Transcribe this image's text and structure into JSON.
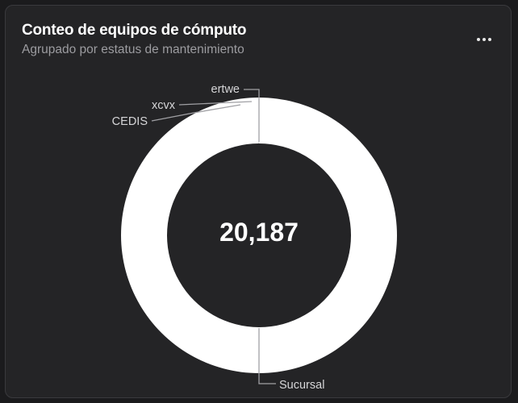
{
  "card": {
    "title": "Conteo de equipos de cómputo",
    "subtitle": "Agrupado por estatus de mantenimiento",
    "menu_icon": "more-horizontal-icon"
  },
  "colors": {
    "background": "#242426",
    "slice_main": "#ffffff",
    "leader_line": "#a0a0a4",
    "label_text": "#d6d6d8"
  },
  "chart_data": {
    "type": "pie",
    "style": "donut",
    "center_value": "20,187",
    "categories": [
      "Sucursal",
      "ertwe",
      "xcvx",
      "CEDIS"
    ],
    "values": [
      20178,
      3,
      3,
      3
    ],
    "legend": "none"
  }
}
